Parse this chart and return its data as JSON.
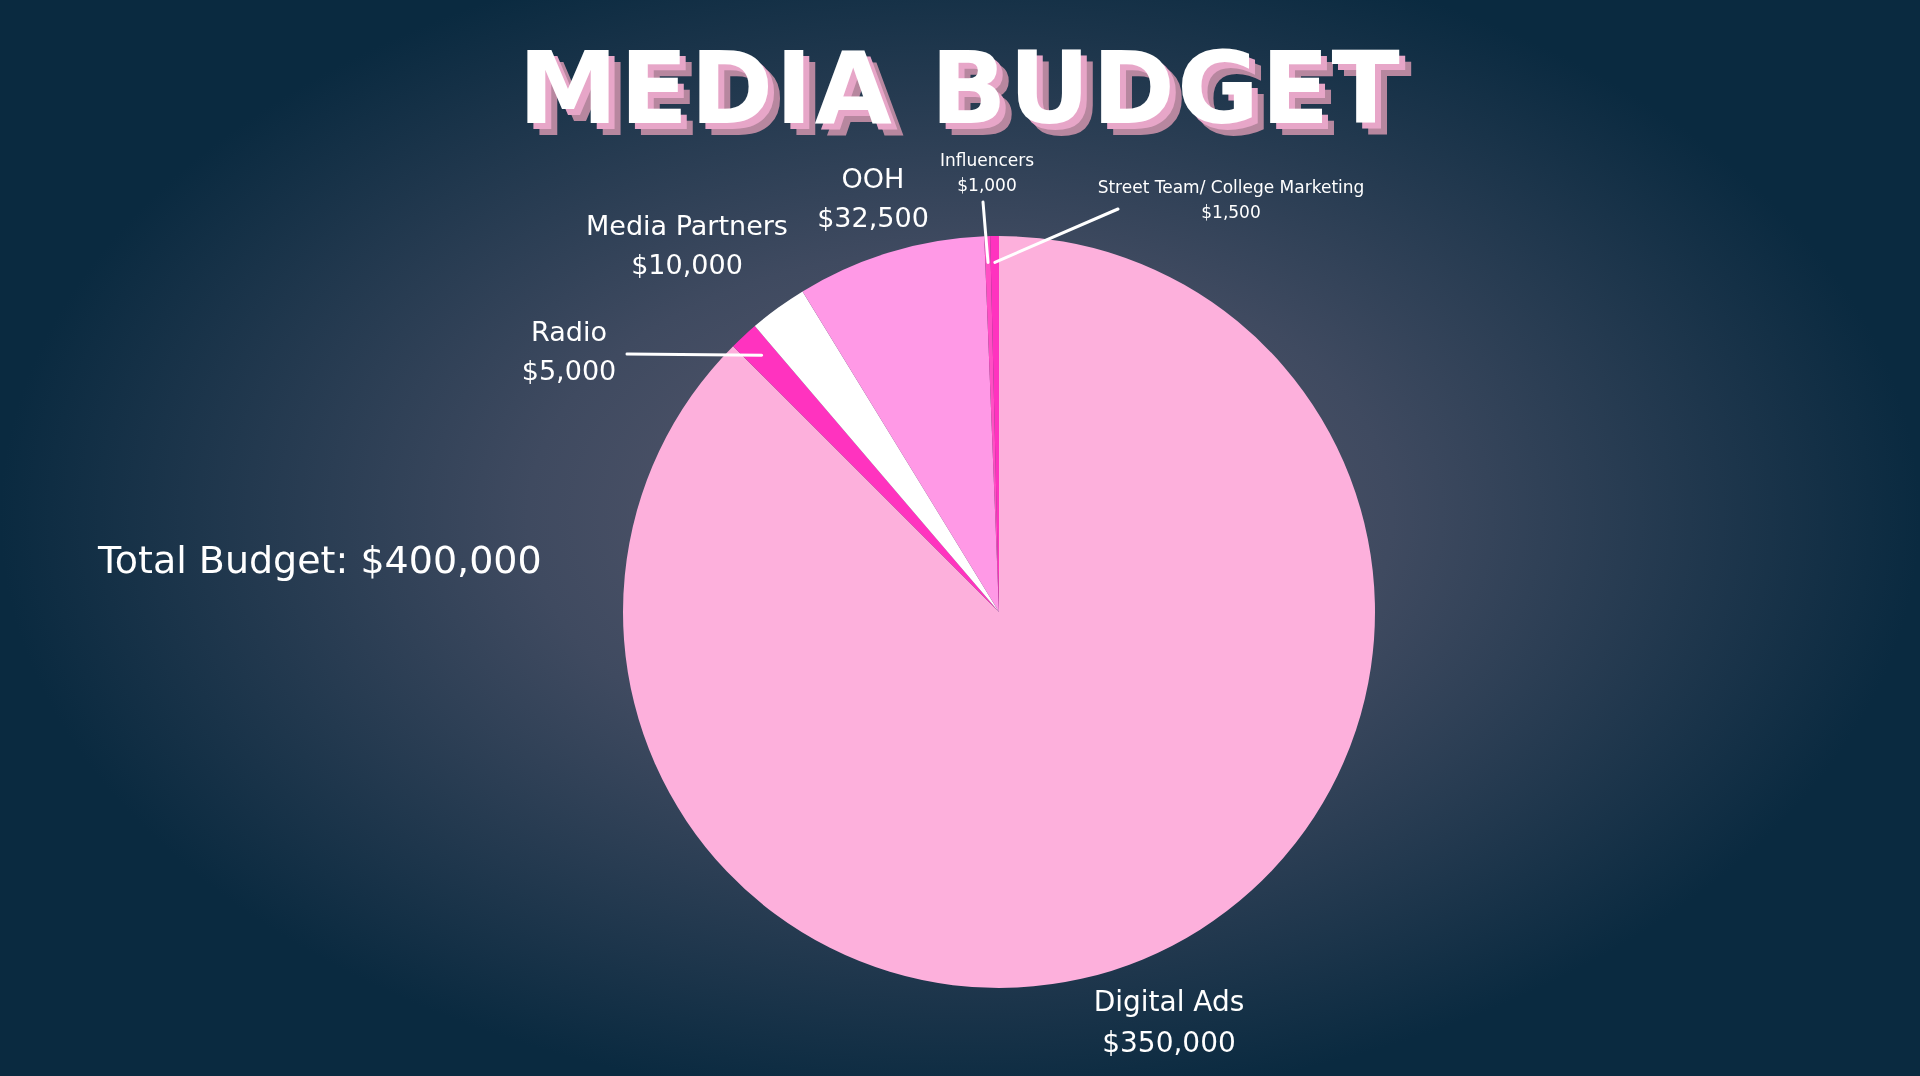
{
  "chart_data": {
    "type": "pie",
    "title": "MEDIA BUDGET",
    "categories": [
      "Digital Ads",
      "Radio",
      "Media Partners",
      "OOH",
      "Influencers",
      "Street Team/ College Marketing"
    ],
    "values": [
      350000,
      5000,
      10000,
      32500,
      1000,
      1500
    ],
    "value_labels": [
      "$350,000",
      "$5,000",
      "$10,000",
      "$32,500",
      "$1,000",
      "$1,500"
    ],
    "colors": [
      "#fdb0dc",
      "#ff33bf",
      "#ffffff",
      "#ff99e6",
      "#ff4fc4",
      "#ff33bf"
    ],
    "annotations": [
      "Total Budget: $400,000"
    ],
    "legend": false
  }
}
